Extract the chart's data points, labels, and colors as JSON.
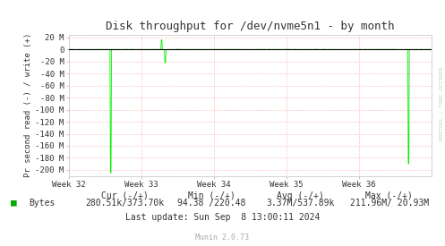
{
  "title": "Disk throughput for /dev/nvme5n1 - by month",
  "ylabel": "Pr second read (-) / write (+)",
  "background_color": "#ffffff",
  "plot_bg_color": "#ffffff",
  "grid_color": "#ffaaaa",
  "line_color": "#00ee00",
  "ylim": [
    -210000000,
    25000000
  ],
  "yticks": [
    20000000,
    0,
    -20000000,
    -40000000,
    -60000000,
    -80000000,
    -100000000,
    -120000000,
    -140000000,
    -160000000,
    -180000000,
    -200000000
  ],
  "ytick_labels": [
    "20 M",
    "0",
    "-20 M",
    "-40 M",
    "-60 M",
    "-80 M",
    "-100 M",
    "-120 M",
    "-140 M",
    "-160 M",
    "-180 M",
    "-200 M"
  ],
  "xtick_positions": [
    0.0,
    0.2,
    0.4,
    0.6,
    0.8
  ],
  "xtick_labels": [
    "Week 32",
    "Week 33",
    "Week 34",
    "Week 35",
    "Week 36"
  ],
  "legend_label": "Bytes",
  "legend_color": "#00aa00",
  "cur_text": "Cur (-/+)",
  "cur_val": "280.51k/373.70k",
  "min_text": "Min (-/+)",
  "min_val": "94.38 /220.48",
  "avg_text": "Avg (-/+)",
  "avg_val": "3.37M/537.89k",
  "max_text": "Max (-/+)",
  "max_val": "211.96M/ 20.93M",
  "last_update": "Last update: Sun Sep  8 13:00:11 2024",
  "munin_text": "Munin 2.0.73",
  "rrdtool_text": "RRDTOOL / TOBI OETIKER",
  "title_color": "#333333",
  "text_color": "#333333",
  "axis_color": "#aaaaaa",
  "spine_color": "#cccccc",
  "rrdtool_color": "#cccccc"
}
